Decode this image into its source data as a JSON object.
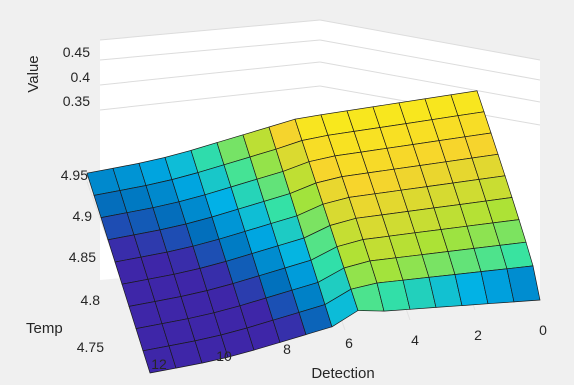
{
  "window": {
    "background": "#f0f0f0"
  },
  "chart_data": {
    "type": "surface",
    "title": "",
    "xlabel": "Detection",
    "ylabel": "Temp",
    "zlabel": "Value",
    "x_ticks": [
      "0",
      "2",
      "4",
      "6",
      "8",
      "10",
      "12"
    ],
    "y_ticks": [
      "4.75",
      "4.8",
      "4.85",
      "4.9",
      "4.95"
    ],
    "z_ticks": [
      "0.35",
      "0.4",
      "0.45"
    ],
    "xlim": [
      0,
      12.5
    ],
    "ylim": [
      4.75,
      5.0
    ],
    "zlim": [
      0.3,
      0.48
    ],
    "grid": true,
    "colormap": [
      "#3e26a8",
      "#0072bd",
      "#00b0e8",
      "#36e3a3",
      "#a9e336",
      "#f7d42d",
      "#f9fb0e"
    ],
    "detection": [
      0,
      1,
      2,
      3,
      4,
      5,
      5.5,
      6,
      7,
      8,
      9,
      10,
      11,
      12
    ],
    "value_profile_high_temp": [
      0.43,
      0.43,
      0.43,
      0.43,
      0.43,
      0.43,
      0.43,
      0.42,
      0.4,
      0.38,
      0.36,
      0.345,
      0.34,
      0.335
    ],
    "value_profile_low_temp_rise_start": 5.3,
    "value_profile_low_temp_floor": 0.3
  }
}
